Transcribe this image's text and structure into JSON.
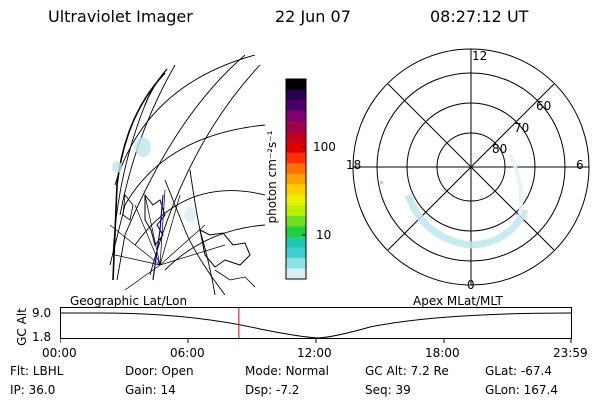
{
  "header": {
    "instrument": "Ultraviolet Imager",
    "date": "22 Jun 07",
    "time": "08:27:12 UT"
  },
  "colorbar": {
    "unit_label": "photon cm⁻²s⁻¹",
    "tick_labels": [
      "100",
      "10"
    ],
    "stops": [
      "#000000",
      "#2a0050",
      "#4b0068",
      "#800070",
      "#a00050",
      "#c00020",
      "#e00000",
      "#ff3000",
      "#ff7000",
      "#ffa000",
      "#ffd000",
      "#e8f000",
      "#b8f000",
      "#70e020",
      "#20d040",
      "#20c8b0",
      "#40d0d0",
      "#90e0e8",
      "#d8f0f4"
    ]
  },
  "polar_plot": {
    "mlt_labels": [
      "12",
      "18",
      "6",
      "0"
    ],
    "lat_labels": [
      "60",
      "70",
      "80"
    ]
  },
  "timeline": {
    "left_label": "Geographic Lat/Lon",
    "right_label": "Apex MLat/MLT",
    "axis_title": "GC Alt",
    "y_ticks": [
      "9.0",
      "1.8"
    ],
    "x_ticks": [
      "00:00",
      "06:00",
      "12:00",
      "18:00",
      "23:59"
    ],
    "current_time_fraction": 0.35
  },
  "status": {
    "row1": [
      {
        "key": "Flt:",
        "value": "LBHL"
      },
      {
        "key": "Door:",
        "value": "Open"
      },
      {
        "key": "Mode:",
        "value": "Normal"
      },
      {
        "key": "GC Alt:",
        "value": "7.2 Re"
      },
      {
        "key": "GLat:",
        "value": "-67.4"
      }
    ],
    "row2": [
      {
        "key": "IP:",
        "value": "36.0"
      },
      {
        "key": "Gain:",
        "value": "14"
      },
      {
        "key": "Dsp:",
        "value": "-7.2"
      },
      {
        "key": "Seq:",
        "value": "39"
      },
      {
        "key": "GLon:",
        "value": "167.4"
      }
    ]
  }
}
